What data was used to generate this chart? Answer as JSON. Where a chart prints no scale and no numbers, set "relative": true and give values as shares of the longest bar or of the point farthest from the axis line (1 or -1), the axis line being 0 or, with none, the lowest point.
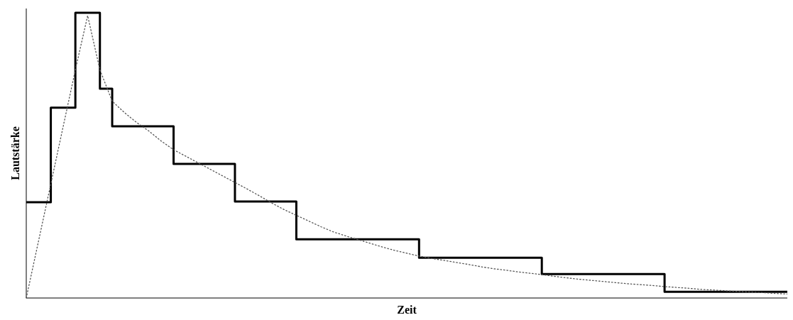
{
  "chart_data": {
    "type": "step",
    "xlabel": "Zeit",
    "ylabel": "Lautstärke",
    "relative": true,
    "categories": [
      null,
      null,
      null,
      null,
      null,
      null,
      null,
      null,
      null,
      null,
      null,
      null,
      null,
      null,
      null,
      null,
      null,
      null,
      null,
      null,
      null,
      null,
      null,
      null,
      null,
      null,
      null,
      null,
      null,
      null,
      null,
      null,
      null,
      null,
      null,
      null,
      null,
      null,
      null,
      null,
      null,
      null,
      null,
      null,
      null,
      null,
      null,
      null,
      null,
      null,
      null,
      null,
      null,
      null,
      null,
      null,
      null,
      null,
      null,
      null,
      null,
      null,
      null
    ],
    "series": [
      {
        "type": "step",
        "color": "#000000",
        "line_style": "solid",
        "values": [
          0.336,
          0.336,
          0.667,
          0.667,
          1,
          1,
          0.734,
          0.602,
          0.602,
          0.602,
          0.602,
          0.602,
          0.47,
          0.47,
          0.47,
          0.47,
          0.47,
          0.338,
          0.338,
          0.338,
          0.338,
          0.338,
          0.206,
          0.206,
          0.206,
          0.206,
          0.206,
          0.206,
          0.206,
          0.206,
          0.206,
          0.206,
          0.141,
          0.141,
          0.141,
          0.141,
          0.141,
          0.141,
          0.141,
          0.141,
          0.141,
          0.141,
          0.084,
          0.084,
          0.084,
          0.084,
          0.084,
          0.084,
          0.084,
          0.084,
          0.084,
          0.084,
          0.022,
          0.022,
          0.022,
          0.022,
          0.022,
          0.022,
          0.022,
          0.022,
          0.022,
          0.022,
          0.022
        ]
      },
      {
        "type": "line",
        "color": "#555555",
        "line_style": "dotted",
        "values": [
          0,
          0.2,
          0.4,
          0.6,
          0.8,
          0.99,
          0.8,
          0.69,
          0.65,
          0.615,
          0.585,
          0.55,
          0.52,
          0.497,
          0.474,
          0.451,
          0.428,
          0.405,
          0.382,
          0.358,
          0.333,
          0.31,
          0.29,
          0.27,
          0.25,
          0.232,
          0.218,
          0.205,
          0.192,
          0.179,
          0.167,
          0.157,
          0.147,
          0.139,
          0.132,
          0.125,
          0.118,
          0.11,
          0.103,
          0.098,
          0.092,
          0.087,
          0.082,
          0.076,
          0.071,
          0.066,
          0.062,
          0.058,
          0.054,
          0.05,
          0.047,
          0.044,
          0.04,
          0.037,
          0.034,
          0.03,
          0.028,
          0.025,
          0.023,
          0.021,
          0.019,
          0.016,
          0.014
        ]
      }
    ]
  }
}
